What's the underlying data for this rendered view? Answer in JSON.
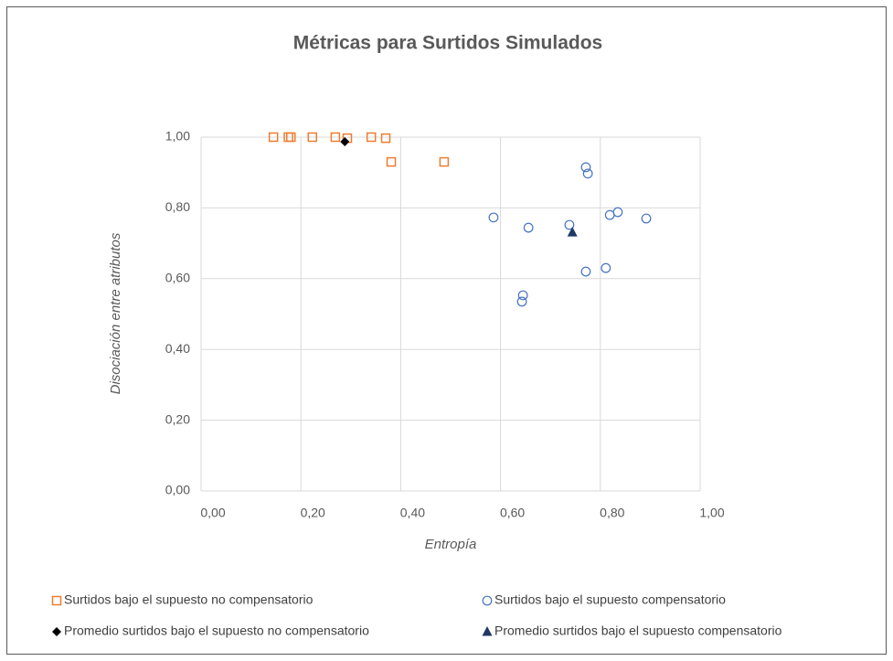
{
  "chart_data": {
    "type": "scatter",
    "title": "Métricas para Surtidos Simulados",
    "x_label": "Entropía",
    "y_label": "Disociación entre atributos",
    "xlim": [
      0,
      1
    ],
    "ylim": [
      0,
      1
    ],
    "xticks": [
      {
        "value": 0,
        "label": "0,00"
      },
      {
        "value": 0.2,
        "label": "0,20"
      },
      {
        "value": 0.4,
        "label": "0,40"
      },
      {
        "value": 0.6,
        "label": "0,60"
      },
      {
        "value": 0.8,
        "label": "0,80"
      },
      {
        "value": 1,
        "label": "1,00"
      }
    ],
    "yticks": [
      {
        "value": 0,
        "label": "0,00"
      },
      {
        "value": 0.2,
        "label": "0,20"
      },
      {
        "value": 0.4,
        "label": "0,40"
      },
      {
        "value": 0.6,
        "label": "0,60"
      },
      {
        "value": 0.8,
        "label": "0,80"
      },
      {
        "value": 1,
        "label": "1,00"
      }
    ],
    "grid": true,
    "series": [
      {
        "name": "Surtidos bajo el supuesto no compensatorio",
        "color": "#ed7d31",
        "marker": "square-open",
        "x": [
          0.145,
          0.175,
          0.18,
          0.223,
          0.269,
          0.293,
          0.341,
          0.37,
          0.381,
          0.487
        ],
        "values": [
          1.0,
          1.0,
          1.0,
          1.0,
          1.0,
          0.997,
          1.0,
          0.997,
          0.93,
          0.93
        ]
      },
      {
        "name": "Surtidos bajo el supuesto compensatorio",
        "color": "#4472c4",
        "marker": "circle-open",
        "x": [
          0.586,
          0.656,
          0.645,
          0.643,
          0.738,
          0.771,
          0.775,
          0.771,
          0.811,
          0.819,
          0.835,
          0.892
        ],
        "values": [
          0.773,
          0.744,
          0.553,
          0.535,
          0.752,
          0.915,
          0.897,
          0.62,
          0.63,
          0.78,
          0.788,
          0.77
        ]
      },
      {
        "name": "Promedio surtidos bajo el supuesto no compensatorio",
        "color": "#000000",
        "marker": "diamond",
        "x": [
          0.288
        ],
        "values": [
          0.987
        ]
      },
      {
        "name": "Promedio surtidos bajo el supuesto compensatorio",
        "color": "#1f3864",
        "marker": "triangle",
        "x": [
          0.744
        ],
        "values": [
          0.731
        ]
      }
    ]
  }
}
